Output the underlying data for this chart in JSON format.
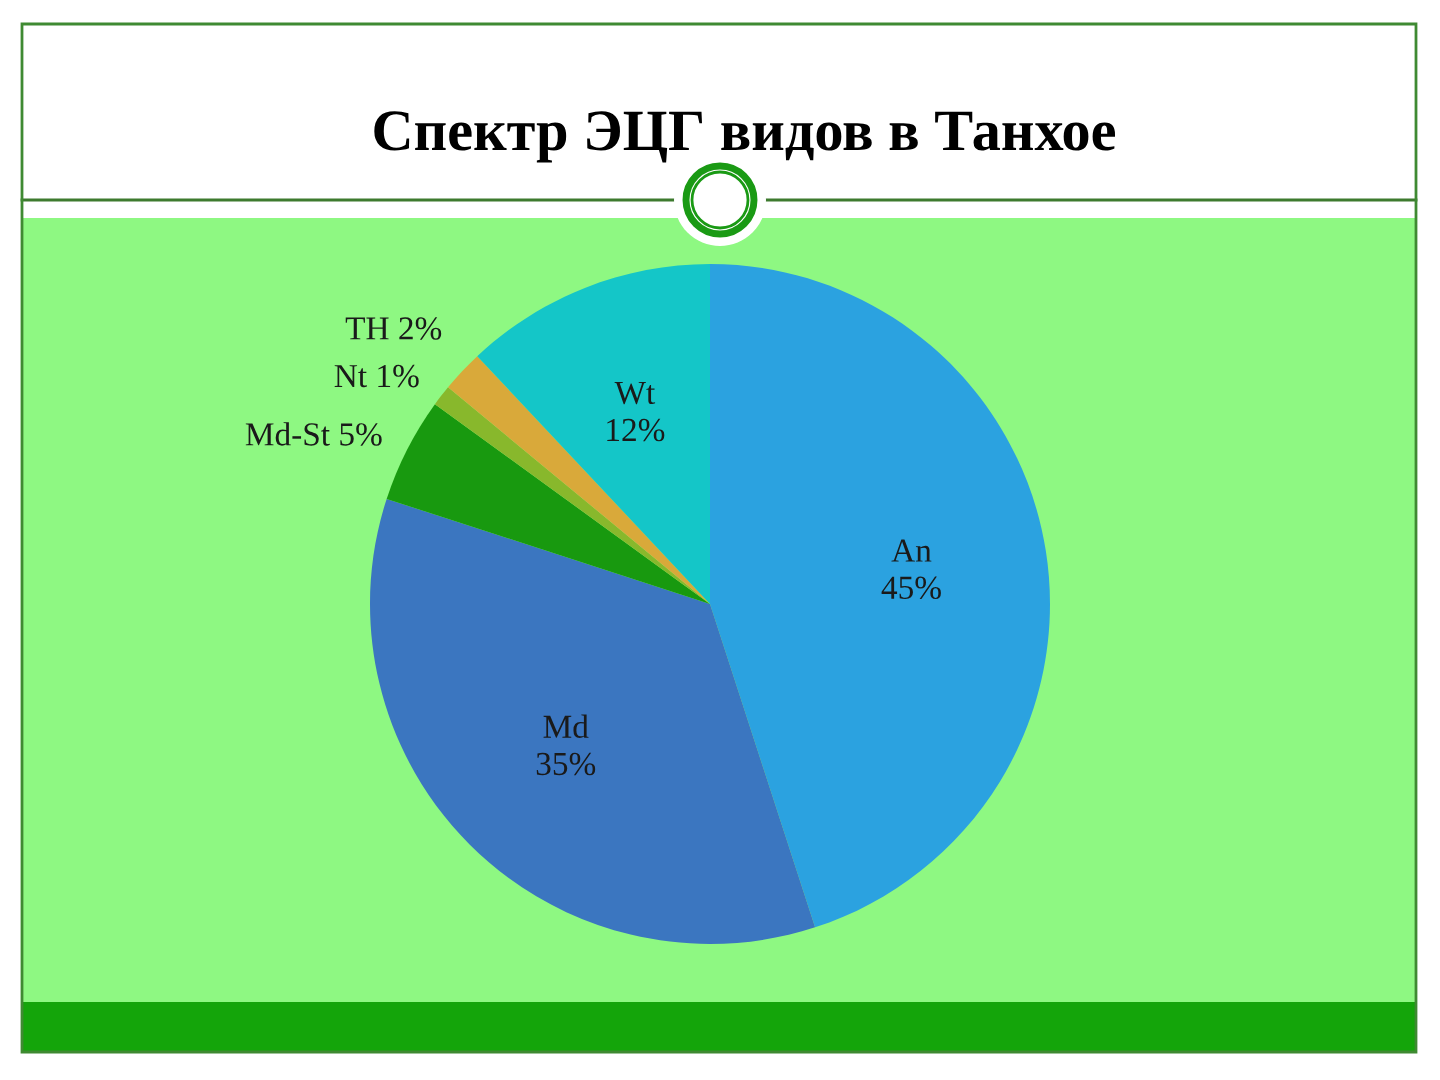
{
  "chart_data": {
    "type": "pie",
    "title": "Спектр ЭЦГ видов в Танхое",
    "categories": [
      "An",
      "Md",
      "Md-St",
      "Nt",
      "TH",
      "Wt"
    ],
    "values": [
      45,
      35,
      5,
      1,
      2,
      12
    ],
    "value_labels": [
      "45%",
      "35%",
      "5%",
      "1%",
      "2%",
      "12%"
    ],
    "colors": [
      "#2ba2e0",
      "#3b76c0",
      "#18990f",
      "#88b82c",
      "#d9a93a",
      "#14c6c8"
    ]
  }
}
